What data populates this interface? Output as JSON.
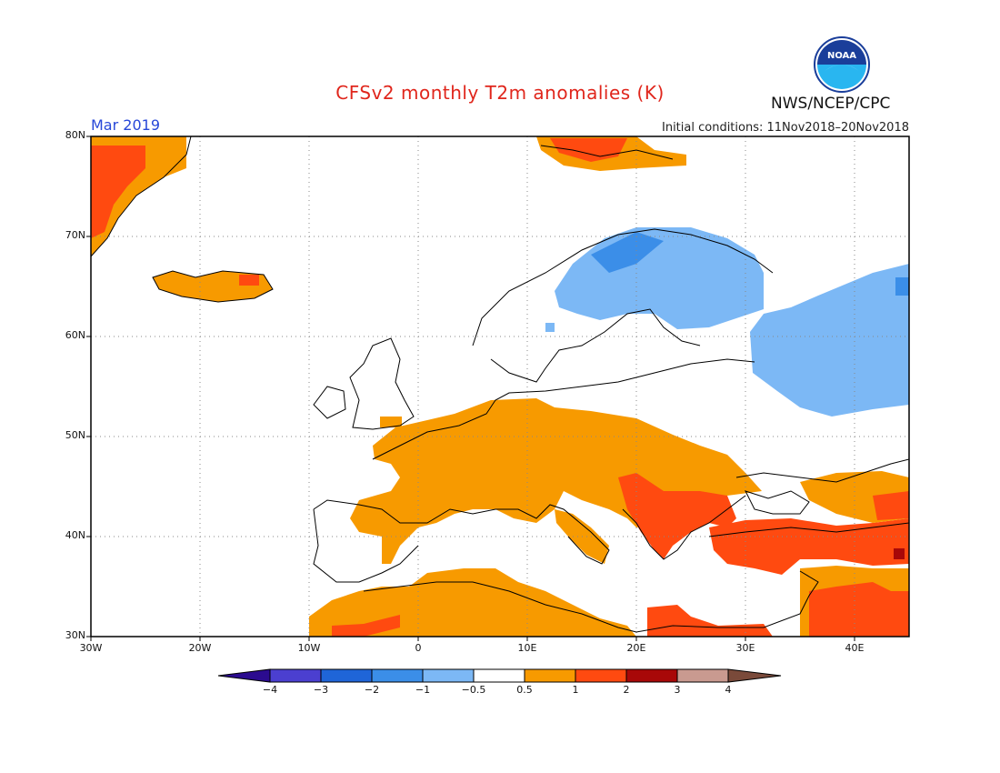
{
  "header": {
    "title": "CFSv2 monthly T2m anomalies (K)",
    "brand": "NWS/NCEP/CPC",
    "month": "Mar 2019",
    "initial_conditions": "Initial conditions: 11Nov2018–20Nov2018",
    "logo_text": "NOAA"
  },
  "map": {
    "projection": "lat-lon",
    "lat_range": [
      30,
      80
    ],
    "lon_range": [
      -30,
      45
    ],
    "y_ticks": [
      "30N",
      "40N",
      "50N",
      "60N",
      "70N",
      "80N"
    ],
    "x_ticks": [
      "30W",
      "20W",
      "10W",
      "0",
      "10E",
      "20E",
      "30E",
      "40E"
    ],
    "gridlines": true
  },
  "colorbar": {
    "labels": [
      "−4",
      "−3",
      "−2",
      "−1",
      "−0.5",
      "0.5",
      "1",
      "2",
      "3",
      "4"
    ],
    "colors": [
      "#2b0b8f",
      "#4b3fd0",
      "#1f65d8",
      "#3b8ee8",
      "#7cb8f5",
      "#ffffff",
      "#f79a00",
      "#ff4a10",
      "#a80808",
      "#c99a90",
      "#7a4a3a"
    ]
  },
  "anomaly_regions": [
    {
      "region": "Greenland east coast",
      "category": "1-2"
    },
    {
      "region": "Iceland",
      "category": "0.5-1"
    },
    {
      "region": "Svalbard",
      "category": "1-2"
    },
    {
      "region": "Northern Scandinavia / Finland / NW Russia",
      "category": "-1 to -0.5"
    },
    {
      "region": "Western Russia",
      "category": "-1 to -0.5"
    },
    {
      "region": "France / Central Europe / Germany",
      "category": "0.5-1"
    },
    {
      "region": "Balkans / Greece / Turkey",
      "category": "1-2"
    },
    {
      "region": "North Africa",
      "category": "0.5-1"
    },
    {
      "region": "Middle East",
      "category": "1-2"
    }
  ]
}
